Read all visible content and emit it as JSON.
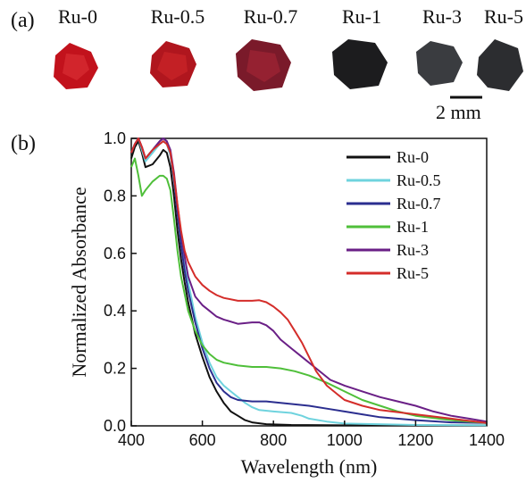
{
  "panels": {
    "a": "(a)",
    "b": "(b)"
  },
  "crystals": [
    {
      "label": "Ru-0",
      "color": "#c2121c"
    },
    {
      "label": "Ru-0.5",
      "color": "#b0161e"
    },
    {
      "label": "Ru-0.7",
      "color": "#7a1a2a"
    },
    {
      "label": "Ru-1",
      "color": "#1c1c1e"
    },
    {
      "label": "Ru-3",
      "color": "#3a3c40"
    },
    {
      "label": "Ru-5",
      "color": "#2c2d30"
    }
  ],
  "scale_bar": "2 mm",
  "chart_data": {
    "type": "line",
    "xlabel": "Wavelength (nm)",
    "ylabel": "Normalized Absorbance",
    "xlim": [
      400,
      1400
    ],
    "ylim": [
      0.0,
      1.0
    ],
    "xticks": [
      "400",
      "600",
      "800",
      "1000",
      "1200",
      "1400"
    ],
    "yticks": [
      "0.0",
      "0.2",
      "0.4",
      "0.6",
      "0.8",
      "1.0"
    ],
    "legend_position": "top-right",
    "series": [
      {
        "name": "Ru-0",
        "color": "#111111",
        "points": [
          [
            400,
            0.93
          ],
          [
            410,
            0.97
          ],
          [
            420,
            0.99
          ],
          [
            430,
            0.95
          ],
          [
            440,
            0.9
          ],
          [
            460,
            0.91
          ],
          [
            480,
            0.94
          ],
          [
            490,
            0.96
          ],
          [
            500,
            0.95
          ],
          [
            510,
            0.9
          ],
          [
            520,
            0.8
          ],
          [
            530,
            0.68
          ],
          [
            540,
            0.58
          ],
          [
            550,
            0.5
          ],
          [
            560,
            0.43
          ],
          [
            580,
            0.32
          ],
          [
            600,
            0.24
          ],
          [
            620,
            0.17
          ],
          [
            640,
            0.12
          ],
          [
            660,
            0.08
          ],
          [
            680,
            0.05
          ],
          [
            700,
            0.035
          ],
          [
            720,
            0.02
          ],
          [
            740,
            0.012
          ],
          [
            780,
            0.006
          ],
          [
            850,
            0.003
          ],
          [
            1000,
            0.002
          ],
          [
            1200,
            0.002
          ],
          [
            1400,
            0.002
          ]
        ]
      },
      {
        "name": "Ru-0.5",
        "color": "#6fd3de",
        "points": [
          [
            400,
            0.95
          ],
          [
            410,
            0.98
          ],
          [
            420,
            1.0
          ],
          [
            430,
            0.96
          ],
          [
            440,
            0.92
          ],
          [
            460,
            0.95
          ],
          [
            480,
            0.98
          ],
          [
            490,
            0.99
          ],
          [
            500,
            0.98
          ],
          [
            510,
            0.94
          ],
          [
            520,
            0.86
          ],
          [
            530,
            0.76
          ],
          [
            540,
            0.66
          ],
          [
            550,
            0.57
          ],
          [
            560,
            0.5
          ],
          [
            580,
            0.38
          ],
          [
            600,
            0.29
          ],
          [
            620,
            0.22
          ],
          [
            640,
            0.17
          ],
          [
            660,
            0.14
          ],
          [
            680,
            0.12
          ],
          [
            700,
            0.1
          ],
          [
            720,
            0.08
          ],
          [
            740,
            0.065
          ],
          [
            760,
            0.055
          ],
          [
            800,
            0.05
          ],
          [
            850,
            0.045
          ],
          [
            880,
            0.035
          ],
          [
            900,
            0.025
          ],
          [
            950,
            0.015
          ],
          [
            1000,
            0.008
          ],
          [
            1200,
            0.003
          ],
          [
            1400,
            0.002
          ]
        ]
      },
      {
        "name": "Ru-0.7",
        "color": "#2b2e8f",
        "points": [
          [
            400,
            0.95
          ],
          [
            410,
            0.98
          ],
          [
            420,
            1.0
          ],
          [
            430,
            0.97
          ],
          [
            440,
            0.93
          ],
          [
            460,
            0.96
          ],
          [
            480,
            0.99
          ],
          [
            490,
            1.0
          ],
          [
            500,
            0.99
          ],
          [
            510,
            0.95
          ],
          [
            520,
            0.86
          ],
          [
            530,
            0.74
          ],
          [
            540,
            0.63
          ],
          [
            550,
            0.54
          ],
          [
            560,
            0.47
          ],
          [
            580,
            0.36
          ],
          [
            600,
            0.27
          ],
          [
            620,
            0.2
          ],
          [
            640,
            0.15
          ],
          [
            660,
            0.12
          ],
          [
            680,
            0.1
          ],
          [
            700,
            0.09
          ],
          [
            740,
            0.085
          ],
          [
            780,
            0.085
          ],
          [
            820,
            0.08
          ],
          [
            860,
            0.075
          ],
          [
            900,
            0.07
          ],
          [
            950,
            0.06
          ],
          [
            1000,
            0.05
          ],
          [
            1050,
            0.04
          ],
          [
            1100,
            0.03
          ],
          [
            1200,
            0.02
          ],
          [
            1300,
            0.012
          ],
          [
            1400,
            0.01
          ]
        ]
      },
      {
        "name": "Ru-1",
        "color": "#4fbf3a",
        "points": [
          [
            400,
            0.9
          ],
          [
            410,
            0.93
          ],
          [
            420,
            0.87
          ],
          [
            430,
            0.8
          ],
          [
            440,
            0.82
          ],
          [
            460,
            0.85
          ],
          [
            480,
            0.87
          ],
          [
            490,
            0.87
          ],
          [
            500,
            0.86
          ],
          [
            510,
            0.82
          ],
          [
            520,
            0.72
          ],
          [
            530,
            0.61
          ],
          [
            540,
            0.52
          ],
          [
            550,
            0.46
          ],
          [
            560,
            0.4
          ],
          [
            580,
            0.33
          ],
          [
            600,
            0.28
          ],
          [
            620,
            0.25
          ],
          [
            640,
            0.23
          ],
          [
            660,
            0.22
          ],
          [
            700,
            0.21
          ],
          [
            740,
            0.205
          ],
          [
            780,
            0.205
          ],
          [
            820,
            0.2
          ],
          [
            860,
            0.19
          ],
          [
            900,
            0.175
          ],
          [
            950,
            0.15
          ],
          [
            1000,
            0.12
          ],
          [
            1050,
            0.09
          ],
          [
            1100,
            0.07
          ],
          [
            1150,
            0.05
          ],
          [
            1200,
            0.035
          ],
          [
            1300,
            0.02
          ],
          [
            1400,
            0.01
          ]
        ]
      },
      {
        "name": "Ru-3",
        "color": "#6a1f86",
        "points": [
          [
            400,
            0.95
          ],
          [
            410,
            0.98
          ],
          [
            420,
            1.0
          ],
          [
            430,
            0.97
          ],
          [
            440,
            0.93
          ],
          [
            460,
            0.96
          ],
          [
            480,
            0.99
          ],
          [
            490,
            1.0
          ],
          [
            500,
            0.99
          ],
          [
            510,
            0.96
          ],
          [
            520,
            0.88
          ],
          [
            530,
            0.77
          ],
          [
            540,
            0.67
          ],
          [
            550,
            0.59
          ],
          [
            560,
            0.52
          ],
          [
            580,
            0.45
          ],
          [
            600,
            0.42
          ],
          [
            620,
            0.4
          ],
          [
            640,
            0.38
          ],
          [
            660,
            0.37
          ],
          [
            700,
            0.355
          ],
          [
            740,
            0.36
          ],
          [
            760,
            0.36
          ],
          [
            780,
            0.35
          ],
          [
            800,
            0.33
          ],
          [
            820,
            0.3
          ],
          [
            850,
            0.27
          ],
          [
            880,
            0.24
          ],
          [
            920,
            0.2
          ],
          [
            960,
            0.16
          ],
          [
            1000,
            0.14
          ],
          [
            1050,
            0.12
          ],
          [
            1100,
            0.1
          ],
          [
            1150,
            0.085
          ],
          [
            1200,
            0.07
          ],
          [
            1250,
            0.05
          ],
          [
            1300,
            0.035
          ],
          [
            1350,
            0.025
          ],
          [
            1400,
            0.015
          ]
        ]
      },
      {
        "name": "Ru-5",
        "color": "#d42d2a",
        "points": [
          [
            400,
            0.95
          ],
          [
            410,
            0.98
          ],
          [
            420,
            1.0
          ],
          [
            430,
            0.97
          ],
          [
            440,
            0.93
          ],
          [
            460,
            0.96
          ],
          [
            480,
            0.98
          ],
          [
            490,
            0.99
          ],
          [
            500,
            0.98
          ],
          [
            510,
            0.95
          ],
          [
            520,
            0.87
          ],
          [
            530,
            0.77
          ],
          [
            540,
            0.68
          ],
          [
            550,
            0.61
          ],
          [
            560,
            0.57
          ],
          [
            580,
            0.52
          ],
          [
            600,
            0.49
          ],
          [
            620,
            0.47
          ],
          [
            640,
            0.455
          ],
          [
            660,
            0.445
          ],
          [
            700,
            0.435
          ],
          [
            740,
            0.435
          ],
          [
            760,
            0.437
          ],
          [
            780,
            0.43
          ],
          [
            800,
            0.415
          ],
          [
            820,
            0.395
          ],
          [
            840,
            0.37
          ],
          [
            860,
            0.33
          ],
          [
            880,
            0.29
          ],
          [
            900,
            0.24
          ],
          [
            920,
            0.19
          ],
          [
            950,
            0.14
          ],
          [
            980,
            0.11
          ],
          [
            1000,
            0.09
          ],
          [
            1050,
            0.07
          ],
          [
            1100,
            0.055
          ],
          [
            1200,
            0.04
          ],
          [
            1300,
            0.025
          ],
          [
            1400,
            0.01
          ]
        ]
      }
    ]
  }
}
